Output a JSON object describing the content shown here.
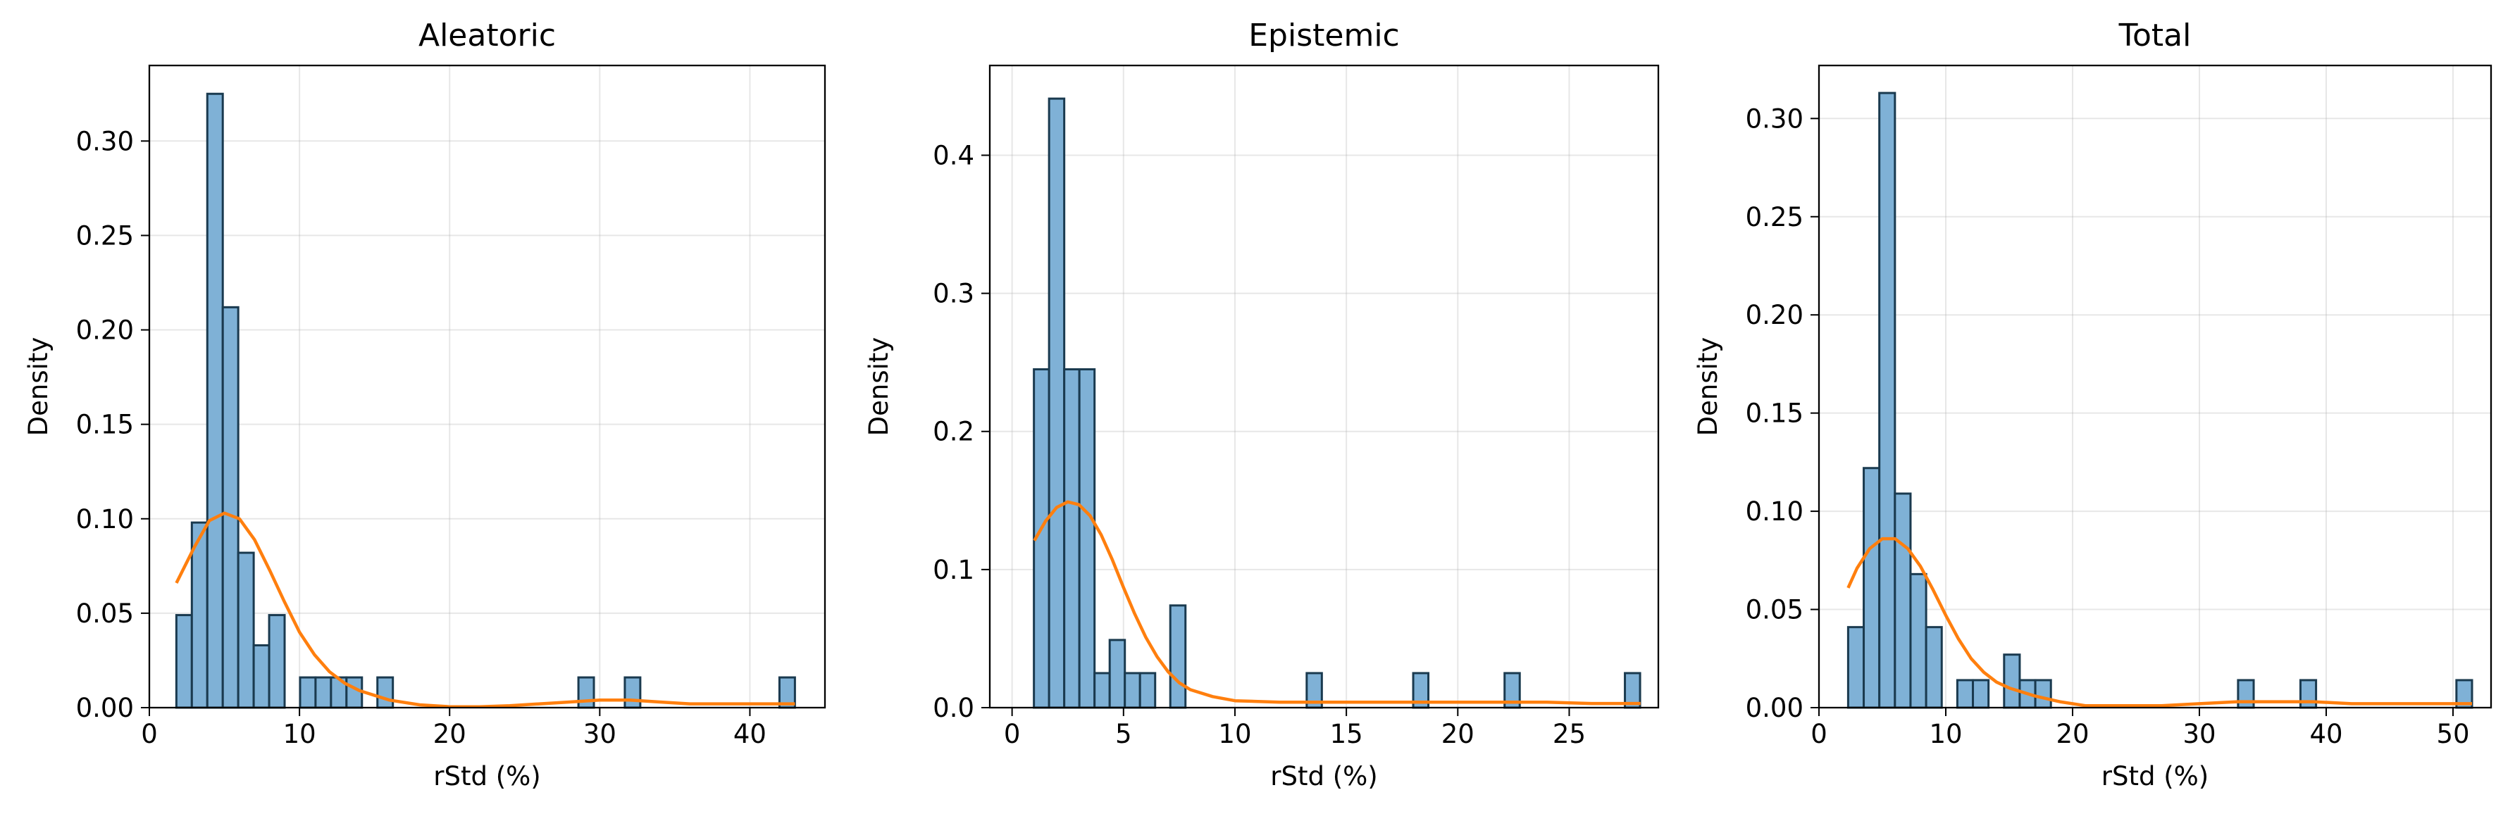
{
  "colors": {
    "bar_fill": "#7fb1d6",
    "bar_edge": "#1a3a4f",
    "kde_line": "#ff7f0e"
  },
  "chart_data": [
    {
      "type": "bar",
      "title": "Aleatoric",
      "xlabel": "rStd (%)",
      "ylabel": "Density",
      "xlim": [
        0,
        45
      ],
      "ylim": [
        0,
        0.34
      ],
      "xticks": [
        0,
        10,
        20,
        30,
        40
      ],
      "yticks": [
        0.0,
        0.05,
        0.1,
        0.15,
        0.2,
        0.25,
        0.3
      ],
      "ytick_decimals": 2,
      "grid": true,
      "bin_width": 1.03,
      "bins": [
        {
          "x": 1.8,
          "density": 0.049
        },
        {
          "x": 2.83,
          "density": 0.098
        },
        {
          "x": 3.86,
          "density": 0.325
        },
        {
          "x": 4.89,
          "density": 0.212
        },
        {
          "x": 5.92,
          "density": 0.082
        },
        {
          "x": 6.95,
          "density": 0.033
        },
        {
          "x": 7.98,
          "density": 0.049
        },
        {
          "x": 10.04,
          "density": 0.016
        },
        {
          "x": 11.07,
          "density": 0.016
        },
        {
          "x": 12.1,
          "density": 0.016
        },
        {
          "x": 13.13,
          "density": 0.016
        },
        {
          "x": 15.19,
          "density": 0.016
        },
        {
          "x": 28.58,
          "density": 0.016
        },
        {
          "x": 31.67,
          "density": 0.016
        },
        {
          "x": 41.97,
          "density": 0.016
        }
      ],
      "kde": {
        "x": [
          1.8,
          3,
          4,
          5,
          6,
          7,
          8,
          9,
          10,
          11,
          12,
          13,
          14,
          16,
          18,
          20,
          22,
          24,
          26,
          28,
          30,
          32,
          34,
          36,
          38,
          40,
          43
        ],
        "y": [
          0.066,
          0.085,
          0.099,
          0.103,
          0.1,
          0.089,
          0.073,
          0.056,
          0.04,
          0.028,
          0.019,
          0.013,
          0.009,
          0.004,
          0.0015,
          0.0005,
          0.0005,
          0.001,
          0.002,
          0.003,
          0.004,
          0.004,
          0.003,
          0.002,
          0.002,
          0.002,
          0.002
        ]
      }
    },
    {
      "type": "bar",
      "title": "Epistemic",
      "xlabel": "rStd (%)",
      "ylabel": "Density",
      "xlim": [
        -1,
        29
      ],
      "ylim": [
        0,
        0.465
      ],
      "xticks": [
        0,
        5,
        10,
        15,
        20,
        25
      ],
      "yticks": [
        0.0,
        0.1,
        0.2,
        0.3,
        0.4
      ],
      "ytick_decimals": 1,
      "grid": true,
      "bin_width": 0.68,
      "bins": [
        {
          "x": 0.98,
          "density": 0.245
        },
        {
          "x": 1.66,
          "density": 0.441
        },
        {
          "x": 2.34,
          "density": 0.245
        },
        {
          "x": 3.02,
          "density": 0.245
        },
        {
          "x": 3.7,
          "density": 0.025
        },
        {
          "x": 4.38,
          "density": 0.049
        },
        {
          "x": 5.06,
          "density": 0.025
        },
        {
          "x": 5.74,
          "density": 0.025
        },
        {
          "x": 7.1,
          "density": 0.074
        },
        {
          "x": 13.22,
          "density": 0.025
        },
        {
          "x": 18.0,
          "density": 0.025
        },
        {
          "x": 22.1,
          "density": 0.025
        },
        {
          "x": 27.5,
          "density": 0.025
        }
      ],
      "kde": {
        "x": [
          1,
          1.5,
          2,
          2.5,
          3,
          3.5,
          4,
          4.5,
          5,
          5.5,
          6,
          6.5,
          7,
          7.5,
          8,
          9,
          10,
          12,
          14,
          16,
          18,
          20,
          22,
          24,
          26,
          28.2
        ],
        "y": [
          0.121,
          0.135,
          0.145,
          0.149,
          0.147,
          0.139,
          0.125,
          0.107,
          0.087,
          0.068,
          0.051,
          0.037,
          0.026,
          0.018,
          0.013,
          0.008,
          0.005,
          0.004,
          0.004,
          0.004,
          0.004,
          0.004,
          0.004,
          0.004,
          0.003,
          0.003
        ]
      }
    },
    {
      "type": "bar",
      "title": "Total",
      "xlabel": "rStd (%)",
      "ylabel": "Density",
      "xlim": [
        0,
        53
      ],
      "ylim": [
        0,
        0.327
      ],
      "xticks": [
        0,
        10,
        20,
        30,
        40,
        50
      ],
      "yticks": [
        0.0,
        0.05,
        0.1,
        0.15,
        0.2,
        0.25,
        0.3
      ],
      "ytick_decimals": 2,
      "grid": true,
      "bin_width": 1.23,
      "bins": [
        {
          "x": 2.3,
          "density": 0.041
        },
        {
          "x": 3.53,
          "density": 0.122
        },
        {
          "x": 4.76,
          "density": 0.313
        },
        {
          "x": 5.99,
          "density": 0.109
        },
        {
          "x": 7.22,
          "density": 0.068
        },
        {
          "x": 8.45,
          "density": 0.041
        },
        {
          "x": 10.91,
          "density": 0.014
        },
        {
          "x": 12.14,
          "density": 0.014
        },
        {
          "x": 14.6,
          "density": 0.027
        },
        {
          "x": 15.83,
          "density": 0.014
        },
        {
          "x": 17.06,
          "density": 0.014
        },
        {
          "x": 33.05,
          "density": 0.014
        },
        {
          "x": 37.97,
          "density": 0.014
        },
        {
          "x": 50.27,
          "density": 0.014
        }
      ],
      "kde": {
        "x": [
          2.3,
          3,
          4,
          5,
          6,
          7,
          8,
          9,
          10,
          11,
          12,
          13,
          14,
          15,
          17,
          19,
          21,
          24,
          27,
          30,
          33,
          36,
          39,
          42,
          45,
          48,
          51.5
        ],
        "y": [
          0.061,
          0.071,
          0.081,
          0.086,
          0.086,
          0.081,
          0.072,
          0.06,
          0.047,
          0.035,
          0.025,
          0.018,
          0.013,
          0.01,
          0.006,
          0.003,
          0.001,
          0.001,
          0.001,
          0.002,
          0.003,
          0.003,
          0.003,
          0.002,
          0.002,
          0.002,
          0.002
        ]
      }
    }
  ]
}
